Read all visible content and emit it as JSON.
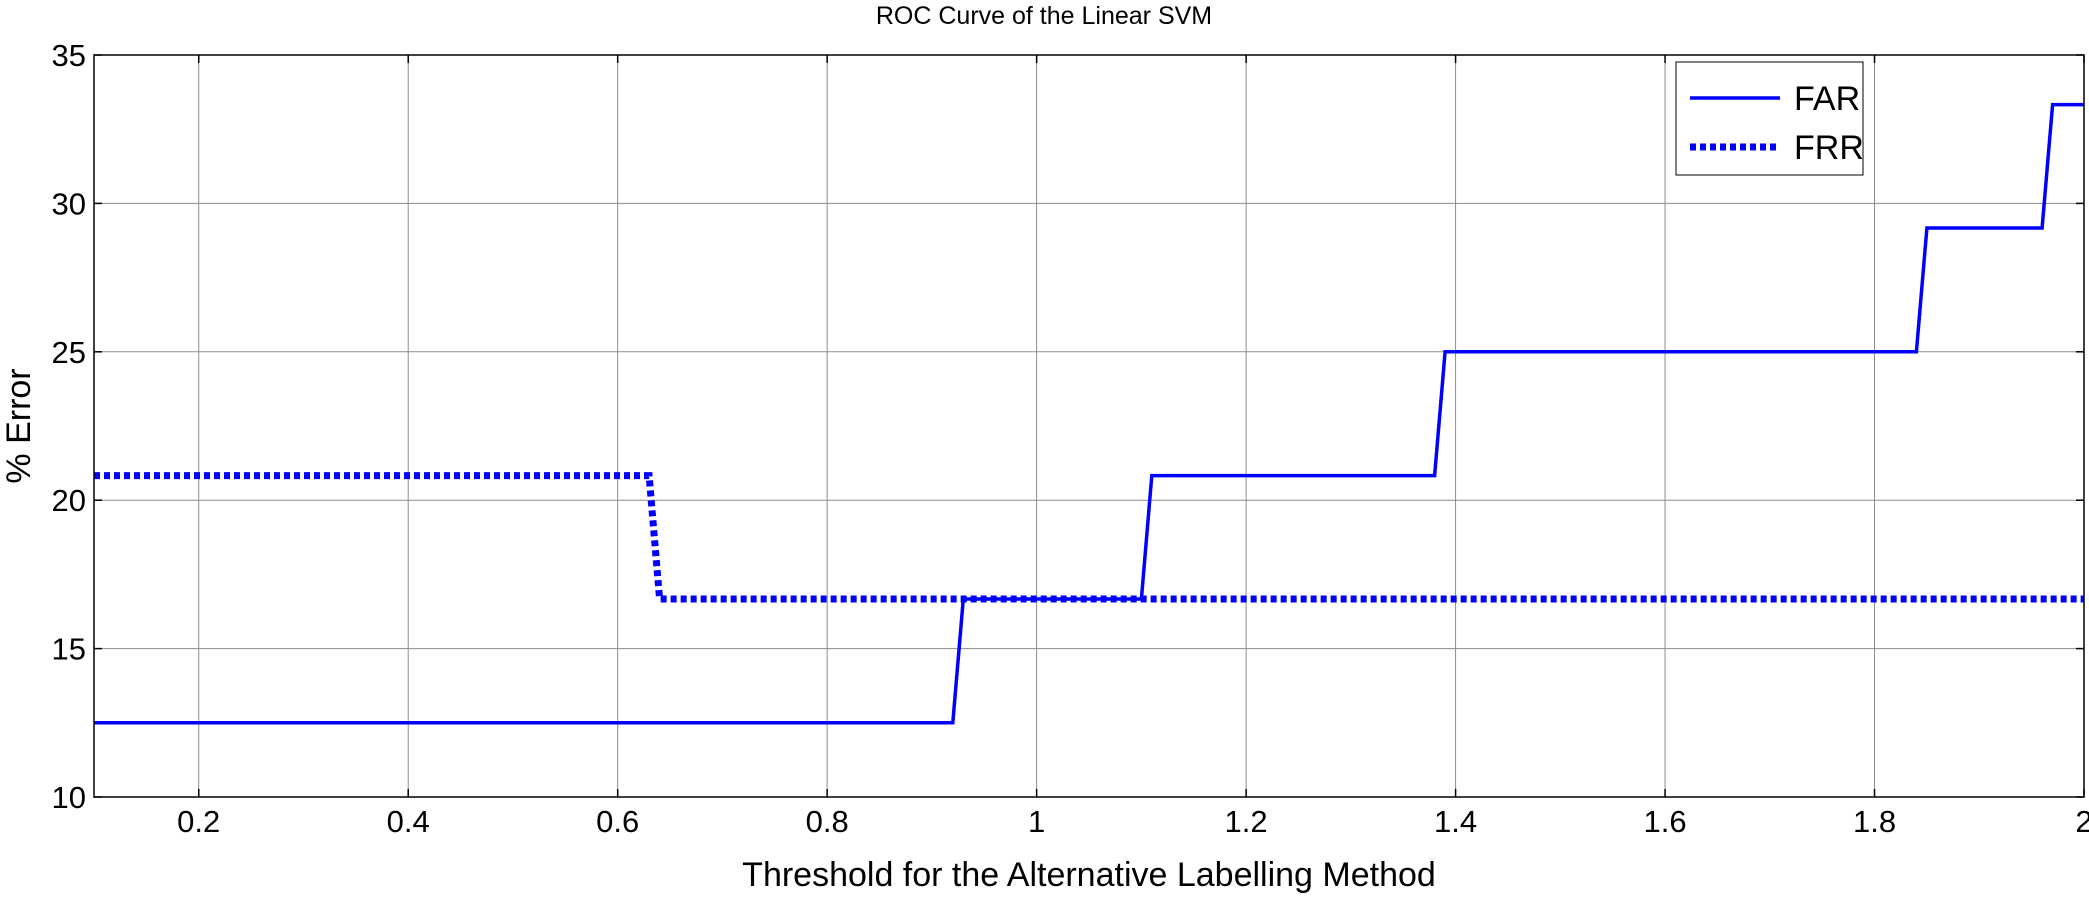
{
  "chart_data": {
    "type": "line",
    "title": "ROC Curve of the Linear SVM",
    "xlabel": "Threshold for the Alternative Labelling Method",
    "ylabel": "% Error",
    "xlim": [
      0.1,
      2
    ],
    "ylim": [
      10,
      35
    ],
    "xticks": [
      0.2,
      0.4,
      0.6,
      0.8,
      1,
      1.2,
      1.4,
      1.6,
      1.8,
      2
    ],
    "xtick_labels": [
      "0.2",
      "0.4",
      "0.6",
      "0.8",
      "1",
      "1.2",
      "1.4",
      "1.6",
      "1.8",
      "2"
    ],
    "yticks": [
      10,
      15,
      20,
      25,
      30,
      35
    ],
    "ytick_labels": [
      "10",
      "15",
      "20",
      "25",
      "30",
      "35"
    ],
    "grid": true,
    "legend": "top-right",
    "series": [
      {
        "name": "FAR",
        "style": "solid",
        "color": "#0000ff",
        "x": [
          0.1,
          0.92,
          0.93,
          1.1,
          1.11,
          1.38,
          1.39,
          1.84,
          1.85,
          1.96,
          1.97,
          2.0
        ],
        "y": [
          12.5,
          12.5,
          16.67,
          16.67,
          20.83,
          20.83,
          25.0,
          25.0,
          29.17,
          29.17,
          33.33,
          33.33
        ]
      },
      {
        "name": "FRR",
        "style": "dotted",
        "color": "#0000ff",
        "x": [
          0.1,
          0.63,
          0.64,
          2.0
        ],
        "y": [
          20.83,
          20.83,
          16.67,
          16.67
        ]
      }
    ]
  }
}
